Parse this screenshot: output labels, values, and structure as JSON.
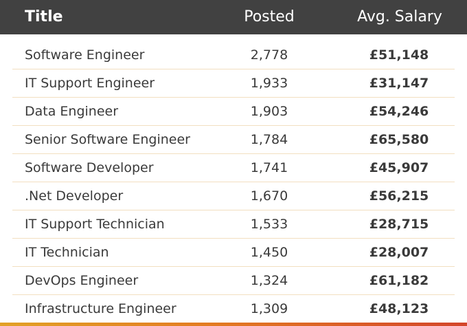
{
  "header": {
    "title": "Title",
    "posted": "Posted",
    "salary": "Avg. Salary"
  },
  "rows": [
    {
      "title": "Software Engineer",
      "posted": "2,778",
      "salary": "£51,148"
    },
    {
      "title": "IT Support Engineer",
      "posted": "1,933",
      "salary": "£31,147"
    },
    {
      "title": "Data Engineer",
      "posted": "1,903",
      "salary": "£54,246"
    },
    {
      "title": "Senior Software Engineer",
      "posted": "1,784",
      "salary": "£65,580"
    },
    {
      "title": "Software Developer",
      "posted": "1,741",
      "salary": "£45,907"
    },
    {
      "title": ".Net Developer",
      "posted": "1,670",
      "salary": "£56,215"
    },
    {
      "title": "IT Support Technician",
      "posted": "1,533",
      "salary": "£28,715"
    },
    {
      "title": "IT Technician",
      "posted": "1,450",
      "salary": "£28,007"
    },
    {
      "title": "DevOps Engineer",
      "posted": "1,324",
      "salary": "£61,182"
    },
    {
      "title": "Infrastructure Engineer",
      "posted": "1,309",
      "salary": "£48,123"
    }
  ],
  "colors": {
    "header_bg": "#414141",
    "row_divider": "#f2dfc0",
    "accent_gradient": [
      "#e2a126",
      "#e37b22",
      "#d3452a"
    ]
  }
}
